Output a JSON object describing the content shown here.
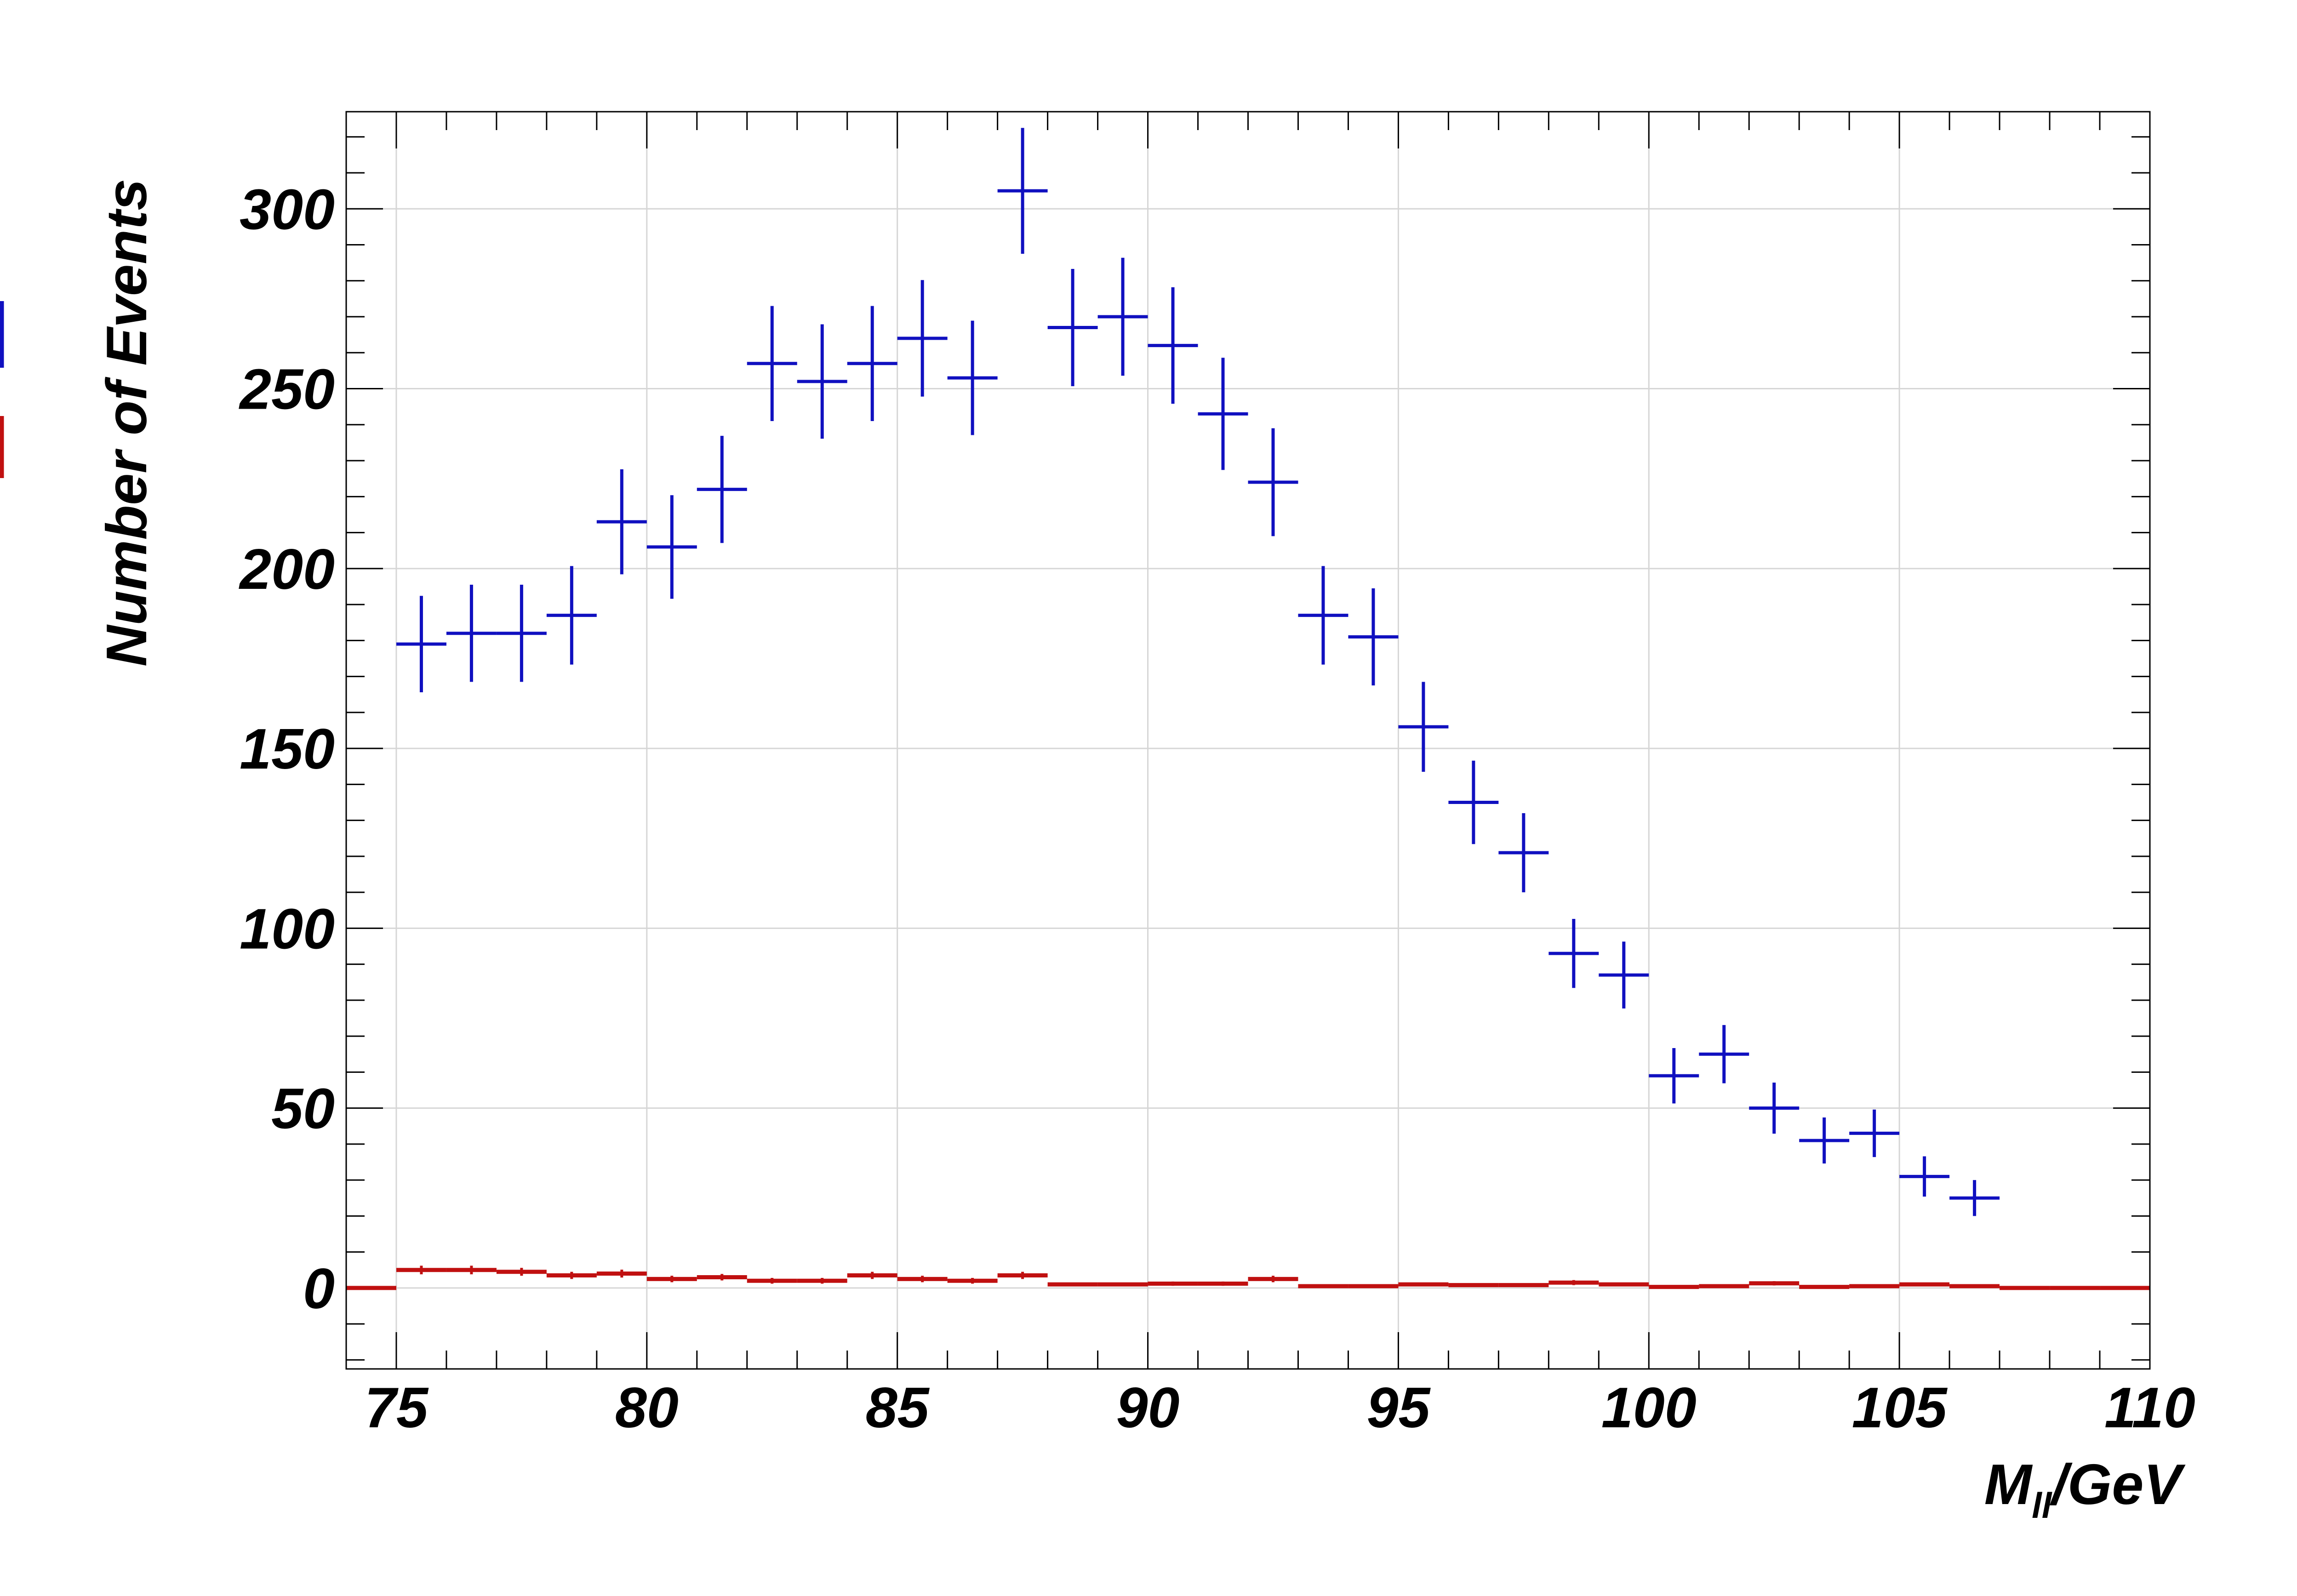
{
  "chart_data": {
    "type": "scatter",
    "xlabel": "M",
    "xlabel_subscript": "ll",
    "xlabel_suffix": "/GeV",
    "ylabel": "Number of Events",
    "xlim": [
      74,
      110
    ],
    "ylim": [
      -22.5,
      327
    ],
    "x_major_ticks": [
      75,
      80,
      85,
      90,
      95,
      100,
      105,
      110
    ],
    "x_tick_labels": [
      "75",
      "80",
      "85",
      "90",
      "95",
      "100",
      "105",
      "110"
    ],
    "y_major_ticks": [
      0,
      50,
      100,
      150,
      200,
      250,
      300
    ],
    "y_tick_labels": [
      "0",
      "50",
      "100",
      "150",
      "200",
      "250",
      "300"
    ],
    "grid": true,
    "bin_width": 1,
    "series": [
      {
        "color": "#1010c0",
        "style": "error-cross",
        "x": [
          75.5,
          76.5,
          77.5,
          78.5,
          79.5,
          80.5,
          81.5,
          82.5,
          83.5,
          84.5,
          85.5,
          86.5,
          87.5,
          88.5,
          89.5,
          90.5,
          91.5,
          92.5,
          93.5,
          94.5,
          95.5,
          96.5,
          97.5,
          98.5,
          99.5,
          100.5,
          101.5,
          102.5,
          103.5,
          104.5,
          105.5,
          106.5
        ],
        "values": [
          179,
          182,
          182,
          187,
          213,
          206,
          222,
          257,
          252,
          257,
          264,
          253,
          305,
          267,
          270,
          262,
          243,
          224,
          187,
          181,
          156,
          135,
          121,
          93,
          87,
          59,
          65,
          50,
          41,
          43,
          31,
          25
        ],
        "errors": [
          13.4,
          13.5,
          13.5,
          13.7,
          14.6,
          14.4,
          14.9,
          16.0,
          15.9,
          16.0,
          16.2,
          15.9,
          17.5,
          16.3,
          16.4,
          16.2,
          15.6,
          15.0,
          13.7,
          13.5,
          12.5,
          11.6,
          11.0,
          9.6,
          9.3,
          7.7,
          8.1,
          7.1,
          6.4,
          6.6,
          5.6,
          5.0
        ]
      },
      {
        "color": "#c01010",
        "style": "histogram-step",
        "x": [
          74.5,
          75.5,
          76.5,
          77.5,
          78.5,
          79.5,
          80.5,
          81.5,
          82.5,
          83.5,
          84.5,
          85.5,
          86.5,
          87.5,
          88.5,
          89.5,
          90.5,
          91.5,
          92.5,
          93.5,
          94.5,
          95.5,
          96.5,
          97.5,
          98.5,
          99.5,
          100.5,
          101.5,
          102.5,
          103.5,
          104.5,
          105.5,
          106.5,
          107.5,
          108.5,
          109.5
        ],
        "values": [
          0,
          5,
          5,
          4.5,
          3.5,
          4,
          2.5,
          3,
          2,
          2,
          3.5,
          2.5,
          2,
          3.5,
          1,
          1,
          1.2,
          1.2,
          2.5,
          0.5,
          0.5,
          1,
          0.8,
          0.8,
          1.5,
          1,
          0.3,
          0.5,
          1.3,
          0.3,
          0.5,
          1,
          0.5,
          0,
          0,
          0
        ],
        "errors": [
          0,
          1.2,
          1.2,
          1.1,
          1.0,
          1.1,
          0.9,
          0.9,
          0.8,
          0.8,
          1.0,
          0.9,
          0.8,
          1.0,
          0.5,
          0.5,
          0.6,
          0.6,
          0.9,
          0.4,
          0.4,
          0.5,
          0.5,
          0.5,
          0.7,
          0.5,
          0.3,
          0.4,
          0.6,
          0.3,
          0.4,
          0.5,
          0.4,
          0,
          0,
          0
        ]
      }
    ]
  }
}
